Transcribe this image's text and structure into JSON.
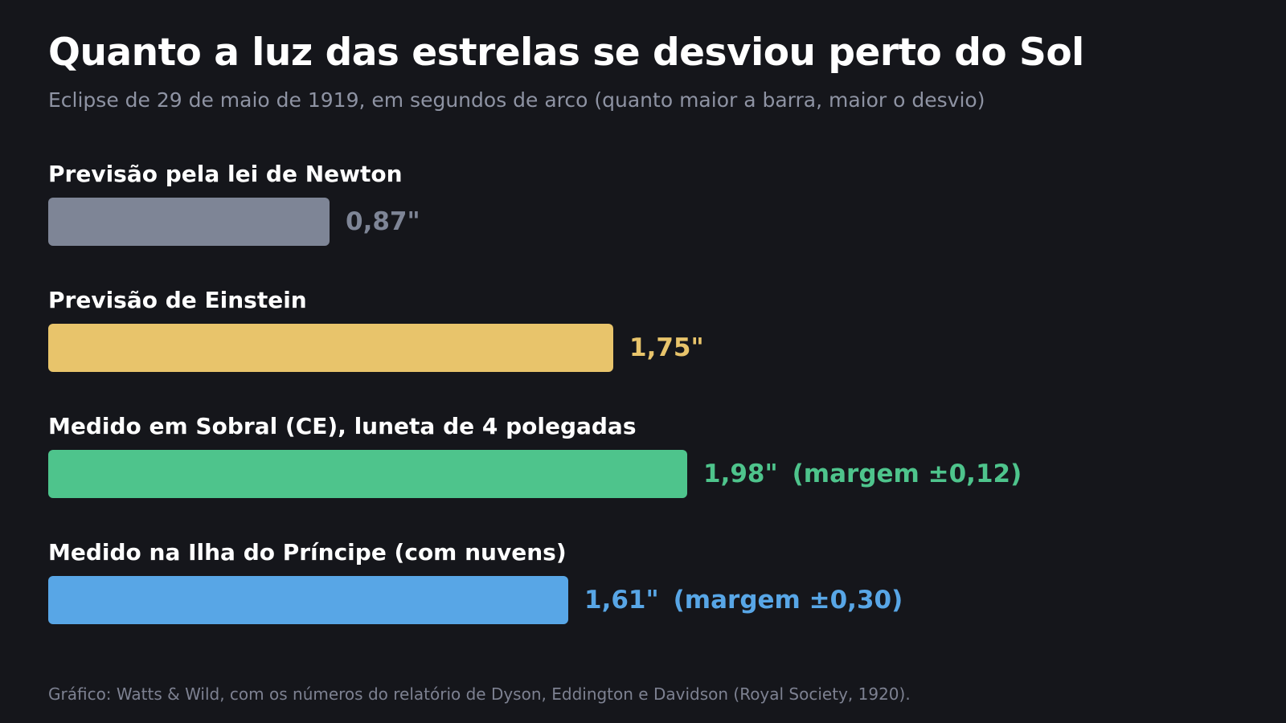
{
  "header": {
    "title": "Quanto a luz das estrelas se desviou perto do Sol",
    "subtitle": "Eclipse de 29 de maio de 1919, em segundos de arco (quanto maior a barra, maior o desvio)"
  },
  "chart_data": {
    "type": "bar",
    "orientation": "horizontal",
    "title": "Quanto a luz das estrelas se desviou perto do Sol",
    "subtitle": "Eclipse de 29 de maio de 1919, em segundos de arco (quanto maior a barra, maior o desvio)",
    "unit": "\"",
    "grid": false,
    "xlim": [
      0,
      2.85
    ],
    "categories": [
      "Previsão pela lei de Newton",
      "Previsão de Einstein",
      "Medido em Sobral (CE), luneta de 4 polegadas",
      "Medido na Ilha do Príncipe (com nuvens)"
    ],
    "values": [
      0.87,
      1.75,
      1.98,
      1.61
    ],
    "value_labels": [
      "0,87\"",
      "1,75\"",
      "1,98\"",
      "1,61\""
    ],
    "margins": [
      null,
      null,
      0.12,
      0.3
    ],
    "margin_labels": [
      "",
      "",
      "(margem ±0,12)",
      "(margem ±0,30)"
    ],
    "colors": [
      "#7e8596",
      "#e8c46b",
      "#4ec48c",
      "#58a6e6"
    ]
  },
  "footer": {
    "source": "Gráfico: Watts & Wild, com os números do relatório de Dyson, Eddington e Davidson (Royal Society, 1920)."
  }
}
